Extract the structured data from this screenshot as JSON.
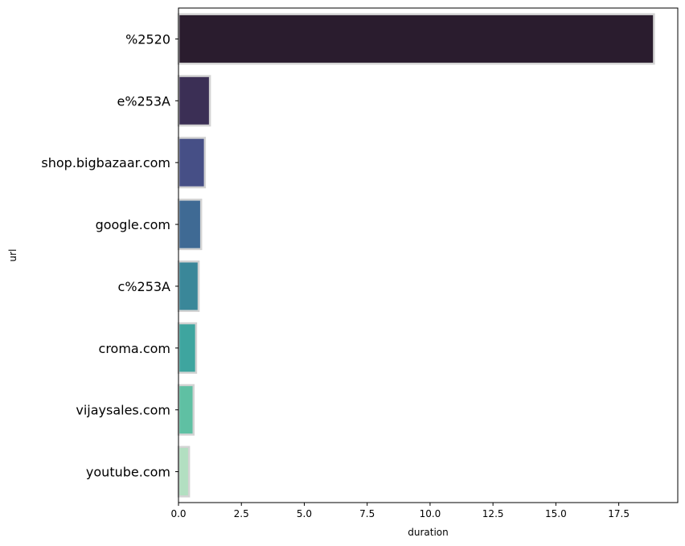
{
  "chart_data": {
    "type": "bar",
    "orientation": "horizontal",
    "categories": [
      "%2520",
      "e%253A",
      "shop.bigbazaar.com",
      "google.com",
      "c%253A",
      "croma.com",
      "vijaysales.com",
      "youtube.com"
    ],
    "values": [
      18.9,
      1.25,
      1.05,
      0.9,
      0.8,
      0.7,
      0.6,
      0.42
    ],
    "colors": [
      "#2a1c2e",
      "#3b2f55",
      "#464f86",
      "#3f6a94",
      "#3a8799",
      "#3ea59f",
      "#5fc0a3",
      "#b2dfc1"
    ],
    "edge_color": "#d3d3d3",
    "xlabel": "duration",
    "ylabel": "url",
    "xlim": [
      0,
      19.845
    ],
    "xticks": [
      0.0,
      2.5,
      5.0,
      7.5,
      10.0,
      12.5,
      15.0,
      17.5
    ],
    "xtick_labels": [
      "0.0",
      "2.5",
      "5.0",
      "7.5",
      "10.0",
      "12.5",
      "15.0",
      "17.5"
    ],
    "grid": false,
    "legend": "none"
  }
}
